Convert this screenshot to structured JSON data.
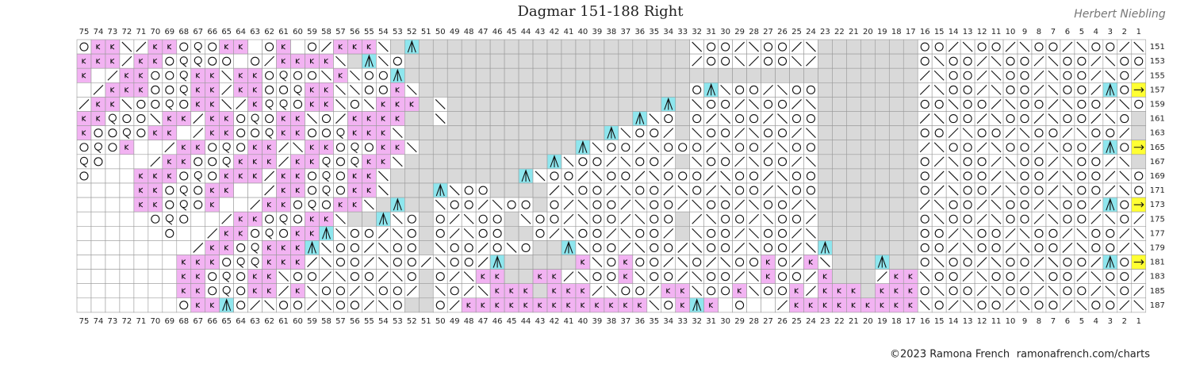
{
  "title": "Dagmar 151-188 Right",
  "author": "Herbert Niebling",
  "credit": "©2023 Ramona French",
  "site": "ramonafrench.com/charts",
  "column_numbers": [
    75,
    74,
    73,
    72,
    71,
    70,
    69,
    68,
    67,
    66,
    65,
    64,
    63,
    62,
    61,
    60,
    59,
    58,
    57,
    56,
    55,
    54,
    53,
    52,
    51,
    50,
    49,
    48,
    47,
    46,
    45,
    44,
    43,
    42,
    41,
    40,
    39,
    38,
    37,
    36,
    35,
    34,
    33,
    32,
    31,
    30,
    29,
    28,
    27,
    26,
    25,
    24,
    23,
    22,
    21,
    20,
    19,
    18,
    17,
    16,
    15,
    14,
    13,
    12,
    11,
    10,
    9,
    8,
    7,
    6,
    5,
    4,
    3,
    2,
    1
  ],
  "row_numbers": [
    187,
    185,
    183,
    181,
    179,
    177,
    175,
    173,
    171,
    169,
    167,
    165,
    163,
    161,
    159,
    157,
    155,
    153,
    151
  ]
}
